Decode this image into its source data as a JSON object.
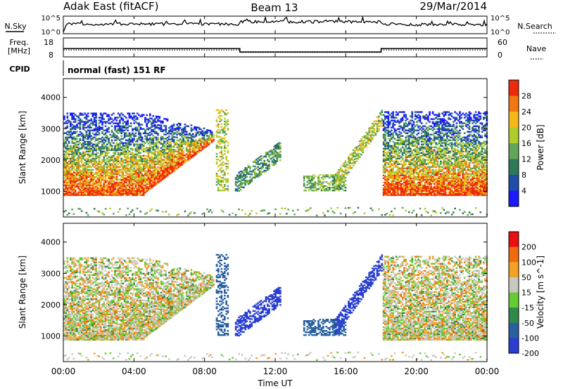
{
  "header": {
    "radar": "Adak East (fitACF)",
    "beam": "Beam 13",
    "date": "29/Mar/2014"
  },
  "cpid_text": "normal (fast) 151 RF",
  "chart_data": [
    {
      "type": "line",
      "name": "noise",
      "left_label": "N.Sky",
      "right_label": "N.Search",
      "y_ticks_left": [
        "10^5",
        "10^0"
      ],
      "y_ticks_right": [
        "10^5",
        "10^0"
      ],
      "log_scale": true
    },
    {
      "type": "line",
      "name": "frequency-nave",
      "left_label": "Freq.",
      "left_unit": "[MHz]",
      "right_label": "Nave",
      "y_ticks_left": [
        "18",
        "8"
      ],
      "y_ticks_right": [
        "60",
        "0"
      ],
      "freq_segments": [
        {
          "t0": 0,
          "t1": 10,
          "value": 12.4
        },
        {
          "t0": 10,
          "t1": 18,
          "value": 10.6
        },
        {
          "t0": 18,
          "t1": 24,
          "value": 12.4
        }
      ],
      "nave_segments": [
        {
          "t0": 0,
          "t1": 10,
          "value": 22
        },
        {
          "t0": 10,
          "t1": 18,
          "value": 14
        },
        {
          "t0": 18,
          "t1": 24,
          "value": 22
        }
      ]
    },
    {
      "type": "heatmap",
      "name": "power",
      "ylabel": "Slant Range [km]",
      "ylim": [
        180,
        4600
      ],
      "y_ticks": [
        1000,
        2000,
        3000,
        4000
      ],
      "colorbar_label": "Power [dB]",
      "colorbar_ticks": [
        4,
        8,
        12,
        16,
        20,
        24,
        28
      ],
      "colors": [
        "#1a1aff",
        "#1f4ea8",
        "#2e7a58",
        "#62a65a",
        "#aecc2e",
        "#f5b818",
        "#f07812",
        "#ee2a0c"
      ]
    },
    {
      "type": "heatmap",
      "name": "velocity",
      "ylabel": "Slant Range [km]",
      "ylim": [
        180,
        4600
      ],
      "y_ticks": [
        1000,
        2000,
        3000,
        4000
      ],
      "colorbar_label": "Velocity [m s^-1]",
      "colorbar_ticks": [
        200,
        100,
        50,
        15,
        -15,
        -50,
        -100,
        -200
      ],
      "colors": [
        "#2a3fd0",
        "#2a60a0",
        "#2e8a4a",
        "#66cc33",
        "#c8c8c0",
        "#f2a224",
        "#f06a10",
        "#e81010"
      ]
    }
  ],
  "time_axis": {
    "ticks": [
      "00:00",
      "04:00",
      "08:00",
      "12:00",
      "16:00",
      "20:00",
      "00:00"
    ],
    "label": "Time UT"
  }
}
